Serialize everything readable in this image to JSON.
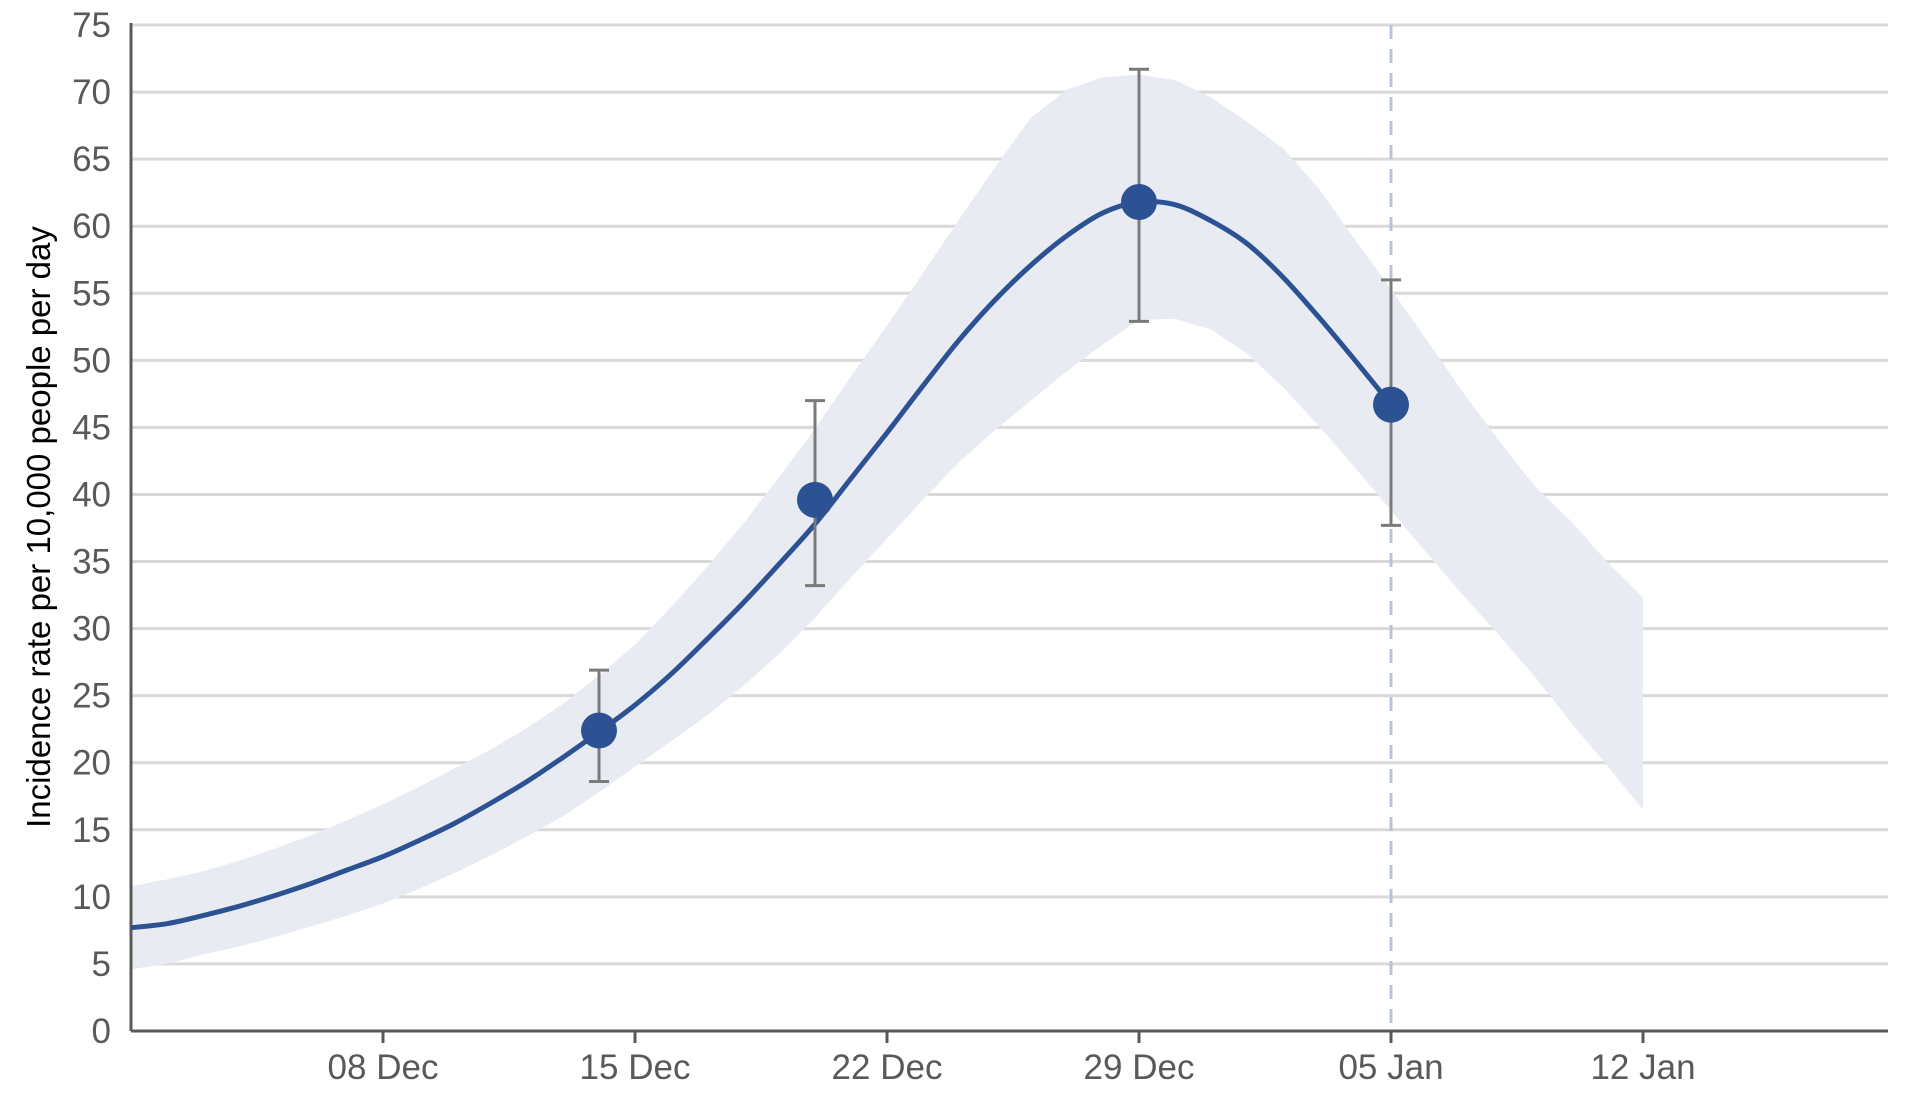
{
  "chart_data": {
    "type": "line",
    "title": "",
    "ylabel": "Incidence rate per 10,000 people per day",
    "xlabel": "",
    "ylim": [
      0,
      75
    ],
    "yticks": [
      0,
      5,
      10,
      15,
      20,
      25,
      30,
      35,
      40,
      45,
      50,
      55,
      60,
      65,
      70,
      75
    ],
    "xlim": [
      "2021-12-01",
      "2022-01-13"
    ],
    "xticks": [
      {
        "date": "2021-12-08",
        "label": "08 Dec"
      },
      {
        "date": "2021-12-15",
        "label": "15 Dec"
      },
      {
        "date": "2021-12-22",
        "label": "22 Dec"
      },
      {
        "date": "2021-12-29",
        "label": "29 Dec"
      },
      {
        "date": "2022-01-05",
        "label": "05 Jan"
      },
      {
        "date": "2022-01-12",
        "label": "12 Jan"
      }
    ],
    "reference_line": {
      "date": "2022-01-05",
      "style": "dashed"
    },
    "grid": true,
    "colors": {
      "line": "#2c5294",
      "band": "#e8ecf2",
      "points": "#2c5294",
      "errorbars": "#7a7a7a",
      "grid": "#d9d9d9",
      "refline": "#b8c3d6"
    },
    "modelled_estimate": [
      {
        "x": "2021-12-01",
        "y": 7.7,
        "lo": 4.6,
        "hi": 10.8
      },
      {
        "x": "2021-12-02",
        "y": 8.0,
        "lo": 5.0,
        "hi": 11.3
      },
      {
        "x": "2021-12-03",
        "y": 8.6,
        "lo": 5.7,
        "hi": 11.9
      },
      {
        "x": "2021-12-04",
        "y": 9.3,
        "lo": 6.3,
        "hi": 12.7
      },
      {
        "x": "2021-12-05",
        "y": 10.1,
        "lo": 7.0,
        "hi": 13.6
      },
      {
        "x": "2021-12-06",
        "y": 11.0,
        "lo": 7.8,
        "hi": 14.6
      },
      {
        "x": "2021-12-07",
        "y": 12.0,
        "lo": 8.6,
        "hi": 15.7
      },
      {
        "x": "2021-12-08",
        "y": 13.0,
        "lo": 9.5,
        "hi": 16.9
      },
      {
        "x": "2021-12-09",
        "y": 14.2,
        "lo": 10.6,
        "hi": 18.2
      },
      {
        "x": "2021-12-10",
        "y": 15.5,
        "lo": 11.8,
        "hi": 19.6
      },
      {
        "x": "2021-12-11",
        "y": 17.0,
        "lo": 13.1,
        "hi": 21.0
      },
      {
        "x": "2021-12-12",
        "y": 18.6,
        "lo": 14.5,
        "hi": 22.6
      },
      {
        "x": "2021-12-13",
        "y": 20.4,
        "lo": 16.0,
        "hi": 24.4
      },
      {
        "x": "2021-12-14",
        "y": 22.3,
        "lo": 17.8,
        "hi": 26.5
      },
      {
        "x": "2021-12-15",
        "y": 24.3,
        "lo": 19.7,
        "hi": 28.8
      },
      {
        "x": "2021-12-16",
        "y": 26.6,
        "lo": 21.6,
        "hi": 31.6
      },
      {
        "x": "2021-12-17",
        "y": 29.2,
        "lo": 23.5,
        "hi": 34.6
      },
      {
        "x": "2021-12-18",
        "y": 31.9,
        "lo": 25.7,
        "hi": 37.8
      },
      {
        "x": "2021-12-19",
        "y": 34.8,
        "lo": 28.1,
        "hi": 41.3
      },
      {
        "x": "2021-12-20",
        "y": 37.8,
        "lo": 30.8,
        "hi": 44.9
      },
      {
        "x": "2021-12-21",
        "y": 41.2,
        "lo": 33.8,
        "hi": 48.8
      },
      {
        "x": "2021-12-22",
        "y": 44.6,
        "lo": 36.7,
        "hi": 52.6
      },
      {
        "x": "2021-12-23",
        "y": 48.1,
        "lo": 39.6,
        "hi": 56.5
      },
      {
        "x": "2021-12-24",
        "y": 51.5,
        "lo": 42.4,
        "hi": 60.5
      },
      {
        "x": "2021-12-25",
        "y": 54.5,
        "lo": 44.8,
        "hi": 64.4
      },
      {
        "x": "2021-12-26",
        "y": 57.1,
        "lo": 47.0,
        "hi": 68.1
      },
      {
        "x": "2021-12-27",
        "y": 59.3,
        "lo": 49.2,
        "hi": 70.2
      },
      {
        "x": "2021-12-28",
        "y": 61.0,
        "lo": 51.2,
        "hi": 71.1
      },
      {
        "x": "2021-12-29",
        "y": 61.8,
        "lo": 53.0,
        "hi": 71.3
      },
      {
        "x": "2021-12-30",
        "y": 61.6,
        "lo": 53.1,
        "hi": 70.9
      },
      {
        "x": "2021-12-31",
        "y": 60.4,
        "lo": 52.3,
        "hi": 69.6
      },
      {
        "x": "2022-01-01",
        "y": 58.7,
        "lo": 50.5,
        "hi": 67.8
      },
      {
        "x": "2022-01-02",
        "y": 56.2,
        "lo": 48.0,
        "hi": 65.8
      },
      {
        "x": "2022-01-03",
        "y": 53.2,
        "lo": 45.1,
        "hi": 62.8
      },
      {
        "x": "2022-01-04",
        "y": 50.0,
        "lo": 42.0,
        "hi": 59.0
      },
      {
        "x": "2022-01-05",
        "y": 46.7,
        "lo": 38.8,
        "hi": 55.3
      },
      {
        "x": "2022-01-06",
        "y": null,
        "lo": 35.6,
        "hi": 51.5
      },
      {
        "x": "2022-01-07",
        "y": null,
        "lo": 32.5,
        "hi": 47.6
      },
      {
        "x": "2022-01-08",
        "y": null,
        "lo": 29.5,
        "hi": 44.0
      },
      {
        "x": "2022-01-09",
        "y": null,
        "lo": 26.4,
        "hi": 40.6
      },
      {
        "x": "2022-01-10",
        "y": null,
        "lo": 23.0,
        "hi": 38.0
      },
      {
        "x": "2022-01-11",
        "y": null,
        "lo": 19.8,
        "hi": 35.0
      },
      {
        "x": "2022-01-12",
        "y": null,
        "lo": 16.5,
        "hi": 32.3
      }
    ],
    "official_estimates": [
      {
        "x": "2021-12-14",
        "y": 22.4,
        "lo": 18.6,
        "hi": 26.9
      },
      {
        "x": "2021-12-20",
        "y": 39.6,
        "lo": 33.2,
        "hi": 47.0
      },
      {
        "x": "2021-12-29",
        "y": 61.8,
        "lo": 52.9,
        "hi": 71.7
      },
      {
        "x": "2022-01-05",
        "y": 46.7,
        "lo": 37.7,
        "hi": 56.0
      }
    ]
  }
}
